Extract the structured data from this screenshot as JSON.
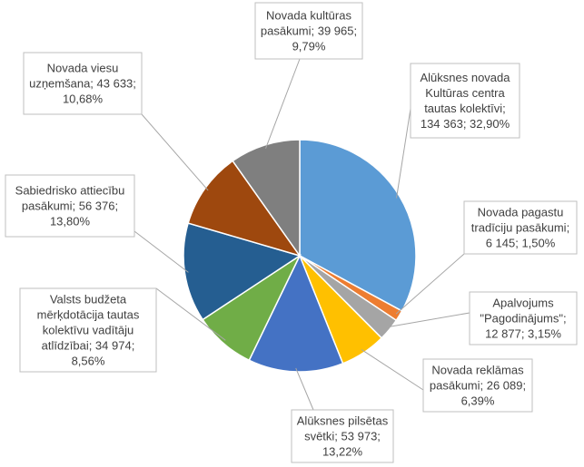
{
  "chart_data": {
    "type": "pie",
    "title": "",
    "series": [
      {
        "values": [
          134363,
          6145,
          12877,
          26089,
          53973,
          34974,
          56376,
          43633,
          39965
        ],
        "percents": [
          "32,90%",
          "1,50%",
          "3,15%",
          "6,39%",
          "13,22%",
          "8,56%",
          "13,80%",
          "10,68%",
          "9,79%"
        ]
      }
    ],
    "slices": [
      {
        "label": "Alūksnes novada Kultūras centra tautas kolektīvi",
        "value": 134363,
        "value_text": "134 363",
        "percent": "32,90%",
        "color": "#5b9bd5"
      },
      {
        "label": "Novada pagastu tradīciju pasākumi",
        "value": 6145,
        "value_text": "6 145",
        "percent": "1,50%",
        "color": "#ed7d31"
      },
      {
        "label": "Apalvojums \"Pagodinājums\"",
        "value": 12877,
        "value_text": "12 877",
        "percent": "3,15%",
        "color": "#a5a5a5"
      },
      {
        "label": "Novada reklāmas pasākumi",
        "value": 26089,
        "value_text": "26 089",
        "percent": "6,39%",
        "color": "#ffc000"
      },
      {
        "label": "Alūksnes pilsētas svētki",
        "value": 53973,
        "value_text": "53 973",
        "percent": "13,22%",
        "color": "#4472c4"
      },
      {
        "label": "Valsts budžeta mērķdotācija tautas kolektīvu vadītāju atlīdzībai",
        "value": 34974,
        "value_text": "34 974",
        "percent": "8,56%",
        "color": "#70ad47"
      },
      {
        "label": "Sabiedrisko attiecību pasākumi",
        "value": 56376,
        "value_text": "56 376",
        "percent": "13,80%",
        "color": "#255e91"
      },
      {
        "label": "Novada viesu uzņemšana",
        "value": 43633,
        "value_text": "43 633",
        "percent": "10,68%",
        "color": "#9e480e"
      },
      {
        "label": "Novada kultūras pasākumi",
        "value": 39965,
        "value_text": "39 965",
        "percent": "9,79%",
        "color": "#7f7f7f"
      }
    ],
    "data_labels": [
      [
        "Alūksnes novada",
        "Kultūras centra",
        "tautas kolektīvi;",
        "134 363; 32,90%"
      ],
      [
        "Novada pagastu",
        "tradīciju pasākumi;",
        "6 145; 1,50%"
      ],
      [
        "Apalvojums",
        "\"Pagodinājums\";",
        "12 877; 3,15%"
      ],
      [
        "Novada reklāmas",
        "pasākumi; 26 089;",
        "6,39%"
      ],
      [
        "Alūksnes pilsētas",
        "svētki; 53 973;",
        "13,22%"
      ],
      [
        "Valsts budžeta",
        "mērķdotācija tautas",
        "kolektīvu vadītāju",
        "atlīdzībai; 34 974;",
        "8,56%"
      ],
      [
        "Sabiedrisko attiecību",
        "pasākumi; 56 376;",
        "13,80%"
      ],
      [
        "Novada viesu",
        "uzņemšana; 43 633;",
        "10,68%"
      ],
      [
        "Novada kultūras",
        "pasākumi; 39 965;",
        "9,79%"
      ]
    ],
    "legend": "none"
  }
}
